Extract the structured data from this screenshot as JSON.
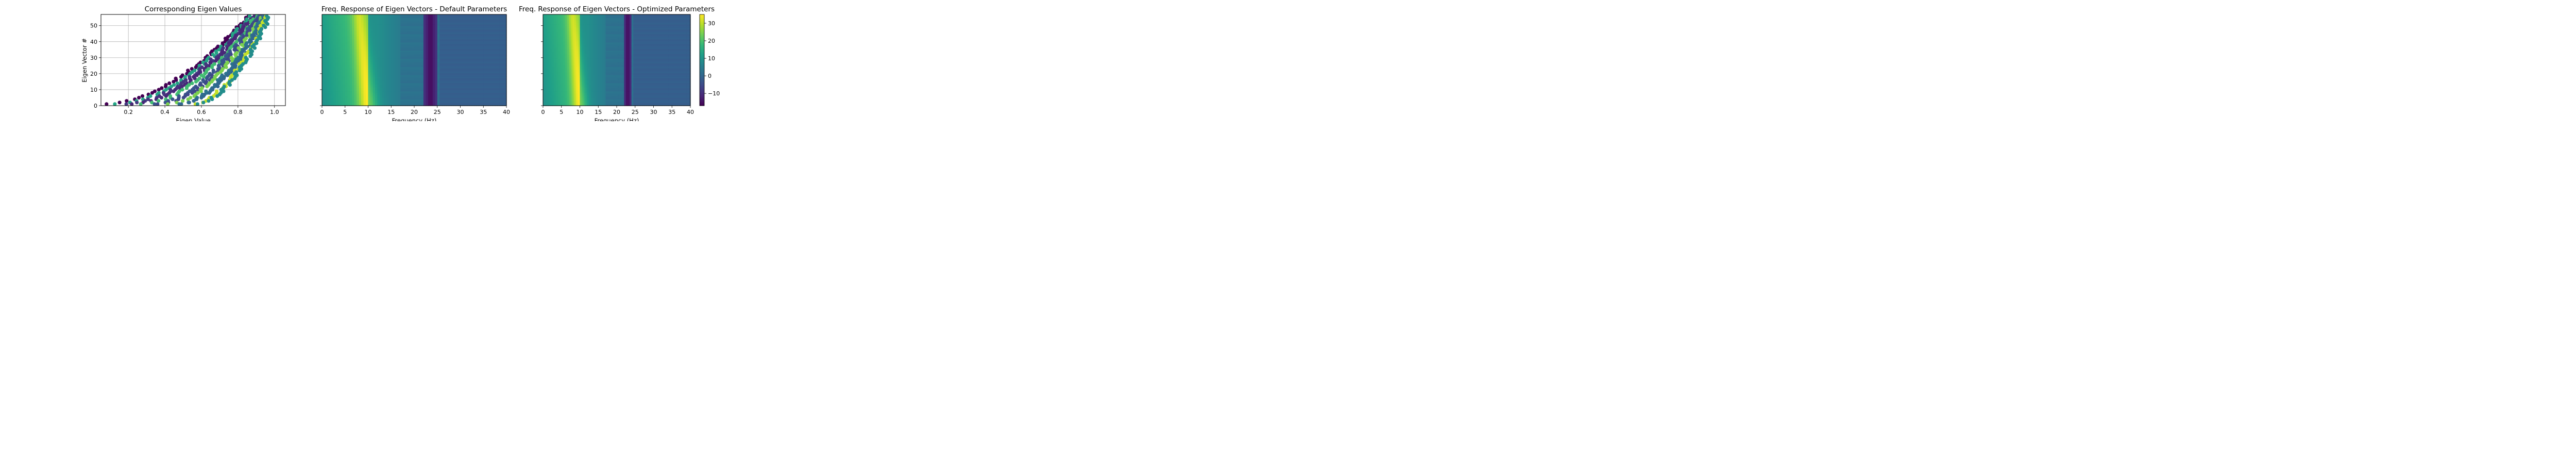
{
  "colors": {
    "cmap": [
      "#440154",
      "#482878",
      "#3e4989",
      "#31688e",
      "#26828e",
      "#1f9e89",
      "#35b779",
      "#6ece58",
      "#b5de2b",
      "#fde725"
    ],
    "grid": "#b0b0b0",
    "axis": "#000000"
  },
  "chart_data": [
    {
      "type": "scatter",
      "title": "Corresponding Eigen Values",
      "xlabel": "Eigen Value",
      "ylabel": "Eigen Vector #",
      "xlim": [
        0.05,
        1.06
      ],
      "ylim": [
        0,
        57
      ],
      "xticks": [
        "0.2",
        "0.4",
        "0.6",
        "0.8",
        "1.0"
      ],
      "yticks": [
        "0",
        "10",
        "20",
        "30",
        "40",
        "50"
      ],
      "grid": true,
      "eigen_vector_range": [
        1,
        56
      ],
      "series_count": 12,
      "eigen_value_curve": {
        "min_eigen_value_at_1": 0.07,
        "eigen_value_at_56_min": 0.86,
        "eigen_value_at_56_max": 0.97,
        "max_eigen_value": 1.0
      }
    },
    {
      "type": "heatmap",
      "title": "Freq. Response of Eigen Vectors - Default Parameters",
      "xlabel": "Frequency (Hz)",
      "xlim": [
        0,
        40
      ],
      "ylim": [
        0,
        57
      ],
      "xticks": [
        "0",
        "5",
        "10",
        "15",
        "20",
        "25",
        "30",
        "35",
        "40"
      ],
      "peak_frequency_hz": 10,
      "trough_frequency_hz": [
        22,
        25
      ]
    },
    {
      "type": "heatmap",
      "title": "Freq. Response of Eigen Vectors - Optimized Parameters",
      "xlabel": "Frequency (Hz)",
      "xlim": [
        0,
        40
      ],
      "ylim": [
        0,
        57
      ],
      "xticks": [
        "0",
        "5",
        "10",
        "15",
        "20",
        "25",
        "30",
        "35",
        "40"
      ],
      "peak_frequency_hz": 10,
      "trough_frequency_hz": [
        22,
        24
      ]
    }
  ],
  "colorbar": {
    "min": -17,
    "max": 35,
    "ticks": [
      "30",
      "20",
      "10",
      "0",
      "−10"
    ],
    "tick_values": [
      30,
      20,
      10,
      0,
      -10
    ]
  }
}
